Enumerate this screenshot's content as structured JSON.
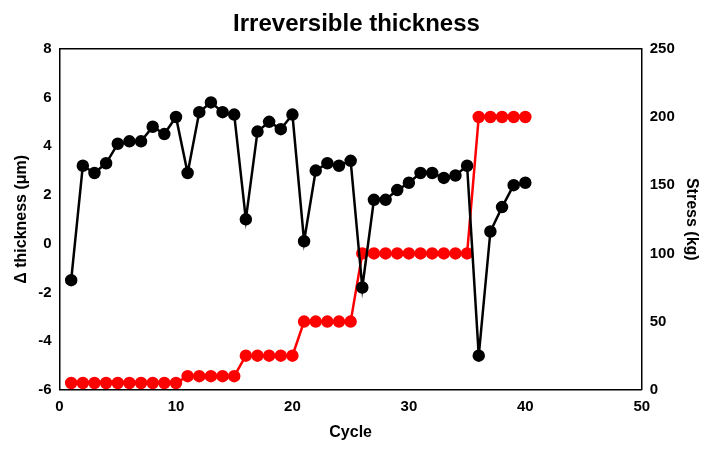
{
  "chart_data": {
    "type": "line",
    "title": "Irreversible thickness",
    "x_label": "Cycle",
    "y_label": "Δ thickness (μm)",
    "y2_label": "Stress (kg)",
    "x": [
      1,
      2,
      3,
      4,
      5,
      6,
      7,
      8,
      9,
      10,
      11,
      12,
      13,
      14,
      15,
      16,
      17,
      18,
      19,
      20,
      21,
      22,
      23,
      24,
      25,
      26,
      27,
      28,
      29,
      30,
      31,
      32,
      33,
      34,
      35,
      36,
      37,
      38,
      39,
      40
    ],
    "series": [
      {
        "color": "#000000",
        "marker": "circle",
        "line_style": "solid",
        "values": [
          -1.5,
          3.2,
          2.9,
          3.3,
          4.1,
          4.2,
          4.2,
          4.8,
          4.5,
          5.2,
          2.9,
          5.4,
          5.8,
          5.4,
          5.3,
          1.0,
          4.6,
          5.0,
          4.7,
          5.3,
          0.1,
          3.0,
          3.3,
          3.2,
          3.4,
          -1.8,
          1.8,
          1.8,
          2.2,
          2.5,
          2.9,
          2.9,
          2.7,
          2.8,
          3.2,
          -4.6,
          0.5,
          1.5,
          2.4,
          2.5
        ]
      },
      {
        "color": "#ff0000",
        "marker": "circle",
        "line_style": "solid",
        "axis": "y2",
        "values": [
          5,
          5,
          5,
          5,
          5,
          5,
          5,
          5,
          5,
          5,
          10,
          10,
          10,
          10,
          10,
          25,
          25,
          25,
          25,
          25,
          50,
          50,
          50,
          50,
          50,
          100,
          100,
          100,
          100,
          100,
          100,
          100,
          100,
          100,
          100,
          200,
          200,
          200,
          200,
          200
        ]
      }
    ],
    "xlim": [
      0,
      50
    ],
    "xticks": [
      0,
      10,
      20,
      30,
      40,
      50
    ],
    "ylim": [
      -6,
      8
    ],
    "yticks": [
      -6,
      -4,
      -2,
      0,
      2,
      4,
      6,
      8
    ],
    "y2lim": [
      0,
      250
    ],
    "y2ticks": [
      0,
      50,
      100,
      150,
      200,
      250
    ],
    "grid": false
  }
}
